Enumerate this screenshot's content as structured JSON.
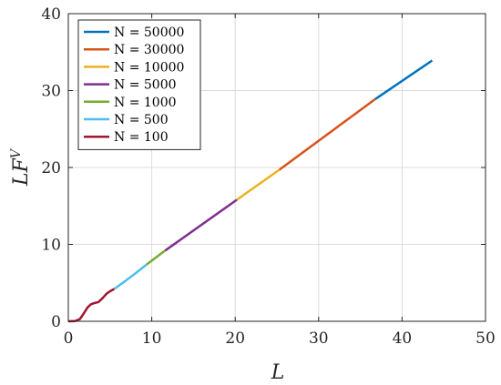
{
  "chart_data": {
    "type": "line",
    "xlabel": "L",
    "ylabel_main": "LF",
    "ylabel_sup": "V",
    "xlim": [
      0,
      50
    ],
    "ylim": [
      0,
      40
    ],
    "x_ticks": [
      0,
      10,
      20,
      30,
      40,
      50
    ],
    "y_ticks": [
      0,
      10,
      20,
      30,
      40
    ],
    "grid": true,
    "legend_position": "top-left",
    "series": [
      {
        "name": "N = 50000",
        "color": "#0072BD",
        "points": [
          [
            36.8,
            28.9
          ],
          [
            43.6,
            33.9
          ]
        ]
      },
      {
        "name": "N = 30000",
        "color": "#D95319",
        "points": [
          [
            25.3,
            19.7
          ],
          [
            36.8,
            28.9
          ]
        ]
      },
      {
        "name": "N = 10000",
        "color": "#EDB120",
        "points": [
          [
            20.2,
            15.8
          ],
          [
            25.3,
            19.7
          ]
        ]
      },
      {
        "name": "N = 5000",
        "color": "#7E2F8E",
        "points": [
          [
            11.6,
            9.2
          ],
          [
            20.2,
            15.8
          ]
        ]
      },
      {
        "name": "N = 1000",
        "color": "#77AC30",
        "points": [
          [
            9.4,
            7.4
          ],
          [
            11.6,
            9.2
          ]
        ]
      },
      {
        "name": "N = 500",
        "color": "#4DBEEE",
        "points": [
          [
            5.5,
            4.2
          ],
          [
            6.9,
            5.3
          ],
          [
            8.0,
            6.2
          ],
          [
            9.4,
            7.4
          ]
        ]
      },
      {
        "name": "N = 100",
        "color": "#A2142F",
        "points": [
          [
            0.0,
            0.0
          ],
          [
            0.8,
            0.02
          ],
          [
            1.4,
            0.3
          ],
          [
            1.9,
            1.1
          ],
          [
            2.3,
            1.8
          ],
          [
            2.7,
            2.2
          ],
          [
            3.1,
            2.35
          ],
          [
            3.6,
            2.5
          ],
          [
            4.1,
            3.0
          ],
          [
            4.6,
            3.6
          ],
          [
            5.0,
            3.9
          ],
          [
            5.5,
            4.2
          ]
        ]
      }
    ]
  }
}
